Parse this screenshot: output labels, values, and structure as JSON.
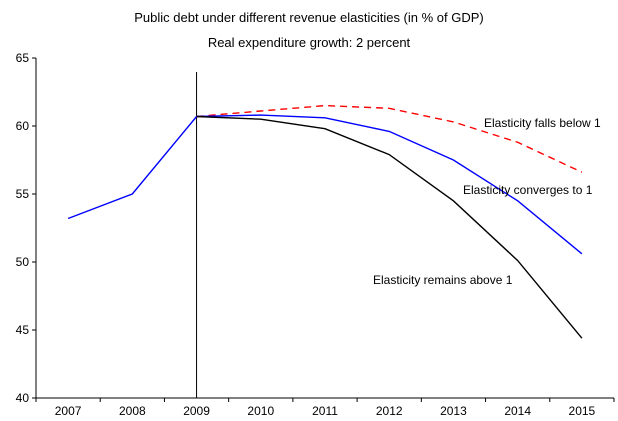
{
  "chart_data": {
    "type": "line",
    "title": "Public debt under different revenue elasticities (in % of GDP)",
    "subtitle": "Real expenditure growth: 2 percent",
    "xlabel": "",
    "ylabel": "",
    "categories": [
      "2007",
      "2008",
      "2009",
      "2010",
      "2011",
      "2012",
      "2013",
      "2014",
      "2015"
    ],
    "ylim": [
      40,
      65
    ],
    "yticks": [
      40,
      45,
      50,
      55,
      60,
      65
    ],
    "vline_at": "2009",
    "grid": false,
    "series": [
      {
        "name": "",
        "color": "#0000ff",
        "dash": "solid",
        "values": [
          53.2,
          55.0,
          60.7,
          null,
          null,
          null,
          null,
          null,
          null
        ]
      },
      {
        "name": "Elasticity falls below 1",
        "color": "#ff0000",
        "dash": "dashed",
        "values": [
          null,
          null,
          60.7,
          61.1,
          61.5,
          61.3,
          60.3,
          58.8,
          56.6
        ]
      },
      {
        "name": "Elasticity converges to 1",
        "color": "#0000ff",
        "dash": "solid",
        "values": [
          null,
          null,
          60.7,
          60.8,
          60.6,
          59.6,
          57.5,
          54.5,
          50.6
        ]
      },
      {
        "name": "Elasticity remains above 1",
        "color": "#000000",
        "dash": "solid",
        "values": [
          null,
          null,
          60.7,
          60.5,
          59.8,
          57.9,
          54.5,
          50.1,
          44.4
        ]
      }
    ]
  }
}
